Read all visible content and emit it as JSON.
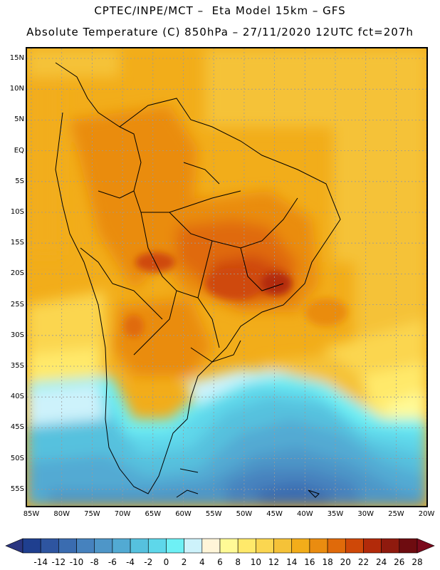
{
  "title_line1": "CPTEC/INPE/MCT –  Eta Model 15km – GFS",
  "title_line2": "Absolute Temperature (C) 850hPa – 27/11/2020 12UTC fct=207h",
  "lat_labels": [
    "15N",
    "10N",
    "5N",
    "EQ",
    "5S",
    "10S",
    "15S",
    "20S",
    "25S",
    "30S",
    "35S",
    "40S",
    "45S",
    "50S",
    "55S"
  ],
  "lon_labels": [
    "85W",
    "80W",
    "75W",
    "70W",
    "65W",
    "60W",
    "55W",
    "50W",
    "45W",
    "40W",
    "35W",
    "30W",
    "25W",
    "20W"
  ],
  "colorbar": {
    "labels": [
      "-14",
      "-12",
      "-10",
      "-8",
      "-6",
      "-4",
      "-2",
      "0",
      "2",
      "4",
      "6",
      "8",
      "10",
      "12",
      "14",
      "16",
      "18",
      "20",
      "22",
      "24",
      "26",
      "28"
    ],
    "colors": [
      "#1f3f8f",
      "#2e55a0",
      "#3a6cb0",
      "#4682be",
      "#4e96c8",
      "#52aad3",
      "#56c1de",
      "#5ed7ea",
      "#6ef0f5",
      "#cdf2fb",
      "#fff5d8",
      "#fffa96",
      "#ffe96a",
      "#fbd650",
      "#f5c238",
      "#f2ad1a",
      "#ea8c10",
      "#e06a0a",
      "#cf4808",
      "#b22a0a",
      "#8f1a0e",
      "#6e0c10"
    ],
    "under_color": "#2a3580",
    "over_color": "#7a0a1c"
  }
}
